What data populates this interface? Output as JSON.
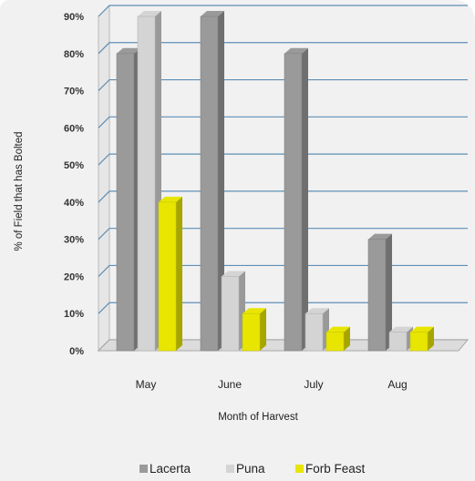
{
  "chart_data": {
    "type": "bar",
    "title": "",
    "xlabel": "Month of Harvest",
    "ylabel": "% of Field that has Bolted",
    "categories": [
      "May",
      "June",
      "July",
      "Aug"
    ],
    "ylim": [
      0,
      90
    ],
    "yticks": [
      "0%",
      "10%",
      "20%",
      "30%",
      "40%",
      "50%",
      "60%",
      "70%",
      "80%",
      "90%"
    ],
    "grid": true,
    "legend_position": "bottom",
    "series": [
      {
        "name": "Lacerta",
        "values": [
          80,
          90,
          80,
          30
        ],
        "color": "#9a9a9a"
      },
      {
        "name": "Puna",
        "values": [
          90,
          20,
          10,
          5
        ],
        "color": "#d4d4d4"
      },
      {
        "name": "Forb Feast",
        "values": [
          40,
          10,
          5,
          5
        ],
        "color": "#e8e600"
      }
    ]
  }
}
